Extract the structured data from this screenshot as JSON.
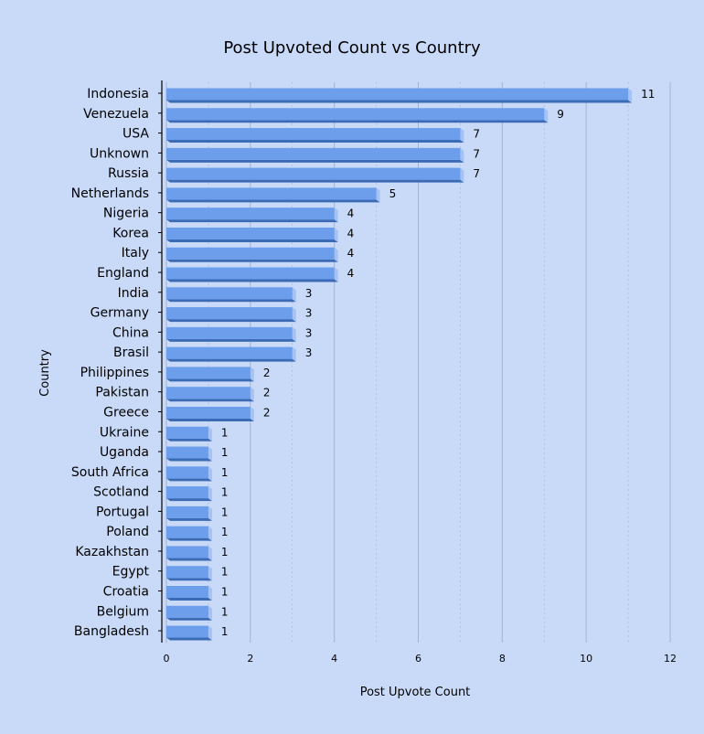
{
  "chart_data": {
    "type": "bar",
    "orientation": "horizontal",
    "title": "Post Upvoted Count vs Country",
    "xlabel": "Post Upvote Count",
    "ylabel": "Country",
    "xlim": [
      0,
      12
    ],
    "xticks": [
      0,
      2,
      4,
      6,
      8,
      10,
      12
    ],
    "grid": true,
    "legend": "none",
    "categories": [
      "Indonesia",
      "Venezuela",
      "USA",
      "Unknown",
      "Russia",
      "Netherlands",
      "Nigeria",
      "Korea",
      "Italy",
      "England",
      "India",
      "Germany",
      "China",
      "Brasil",
      "Philippines",
      "Pakistan",
      "Greece",
      "Ukraine",
      "Uganda",
      "South Africa",
      "Scotland",
      "Portugal",
      "Poland",
      "Kazakhstan",
      "Egypt",
      "Croatia",
      "Belgium",
      "Bangladesh"
    ],
    "values": [
      11,
      9,
      7,
      7,
      7,
      5,
      4,
      4,
      4,
      4,
      3,
      3,
      3,
      3,
      2,
      2,
      2,
      1,
      1,
      1,
      1,
      1,
      1,
      1,
      1,
      1,
      1,
      1
    ],
    "colors": {
      "background": "#c9daf8",
      "bar_face": "#6d9eeb",
      "bar_top": "#a4c2f4",
      "bar_side": "#3c6bb5",
      "grid": "#a3b3cf"
    }
  }
}
